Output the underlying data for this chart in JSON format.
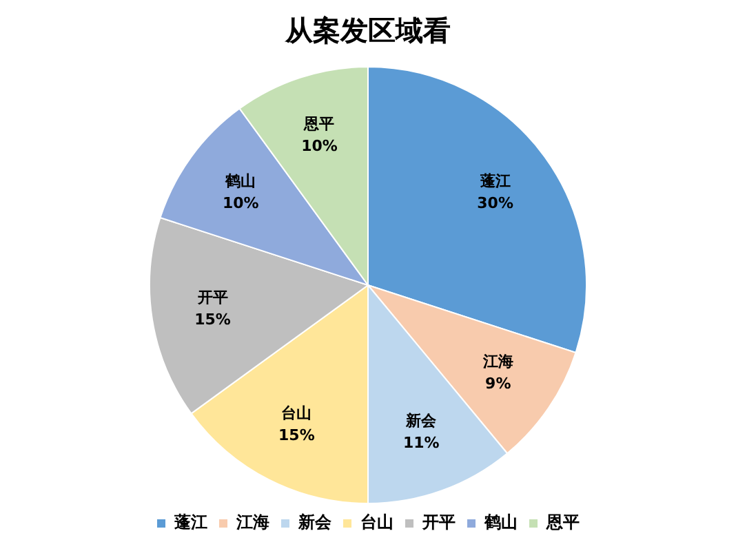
{
  "chart_data": {
    "type": "pie",
    "title": "从案发区域看",
    "categories": [
      "蓬江",
      "江海",
      "新会",
      "台山",
      "开平",
      "鹤山",
      "恩平"
    ],
    "values": [
      30,
      9,
      11,
      15,
      15,
      10,
      10
    ],
    "value_labels": [
      "30%",
      "9%",
      "11%",
      "15%",
      "15%",
      "10%",
      "10%"
    ],
    "colors": [
      "#5b9bd5",
      "#f8cbad",
      "#bdd7ee",
      "#ffe699",
      "#bfbfbf",
      "#8faadc",
      "#c5e0b4"
    ],
    "legend": "bottom"
  }
}
